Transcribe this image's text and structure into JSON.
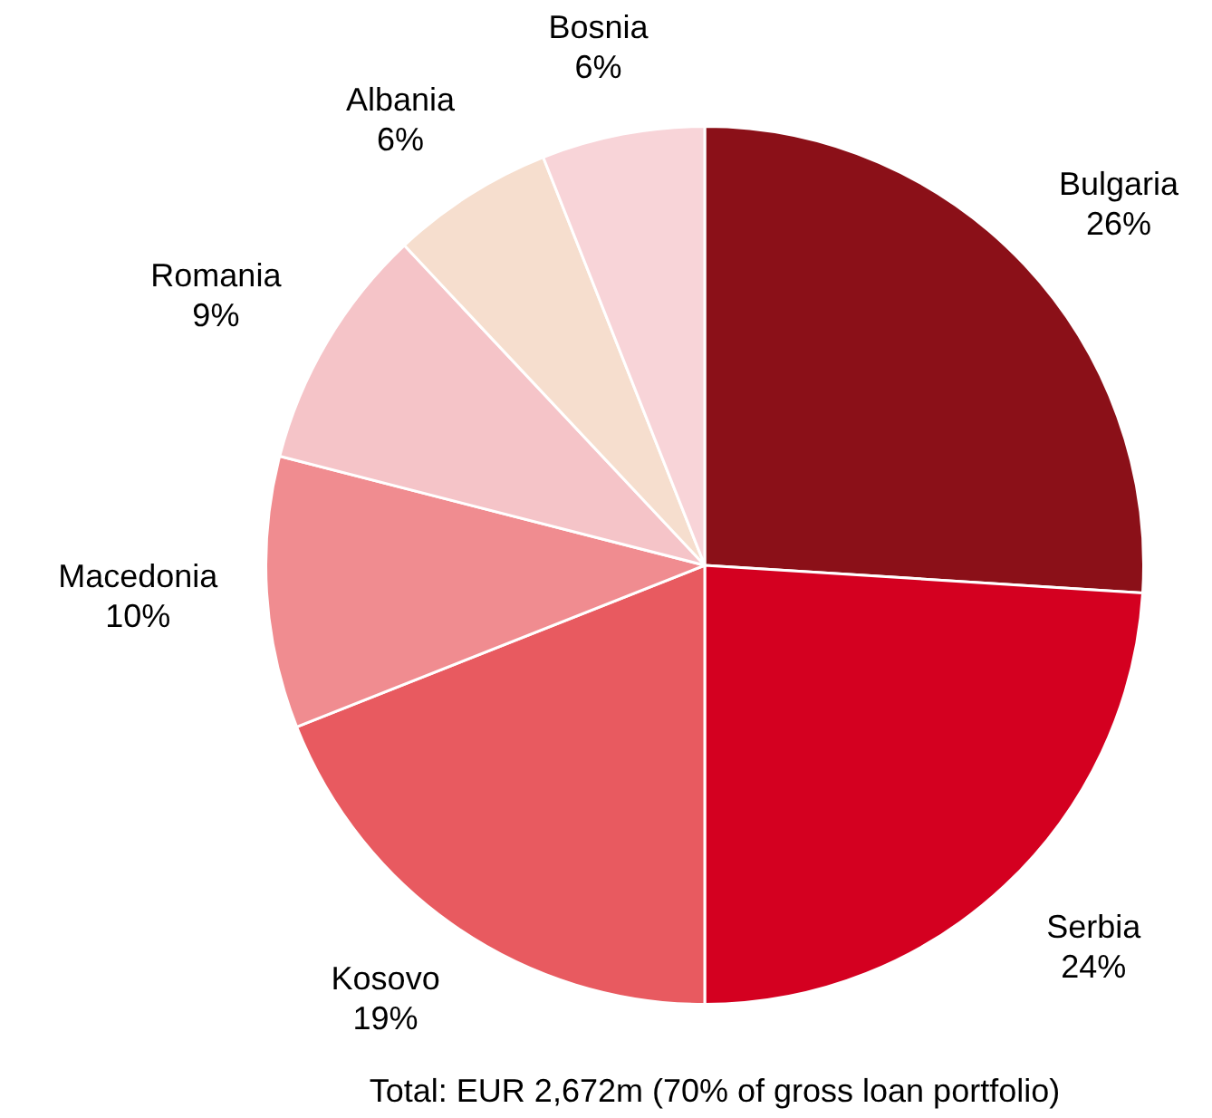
{
  "chart_data": {
    "type": "pie",
    "categories": [
      "Bulgaria",
      "Serbia",
      "Kosovo",
      "Macedonia",
      "Romania",
      "Albania",
      "Bosnia"
    ],
    "values": [
      26,
      24,
      19,
      10,
      9,
      6,
      6
    ],
    "colors": [
      "#8b1018",
      "#d40020",
      "#e85a60",
      "#f08c90",
      "#f5c4c8",
      "#f6dece",
      "#f8d4d8"
    ],
    "value_labels": [
      "26%",
      "24%",
      "19%",
      "10%",
      "9%",
      "6%",
      "6%"
    ],
    "annotations": [
      "Total: EUR 2,672m (70% of gross loan portfolio)"
    ]
  }
}
